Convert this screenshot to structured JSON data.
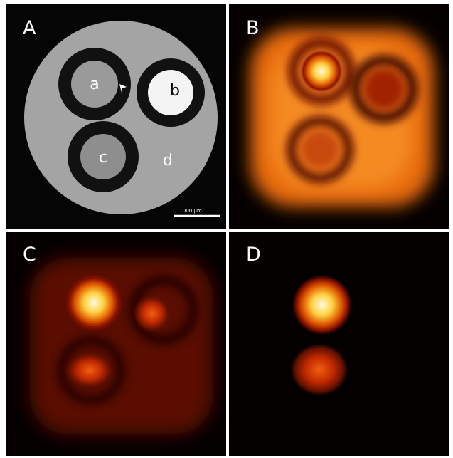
{
  "panels": [
    {
      "label": "A",
      "annotations": [
        "a",
        "b",
        "c",
        "d"
      ],
      "scale_bar": "1000 µm"
    },
    {
      "label": "B"
    },
    {
      "label": "C"
    },
    {
      "label": "D"
    }
  ]
}
